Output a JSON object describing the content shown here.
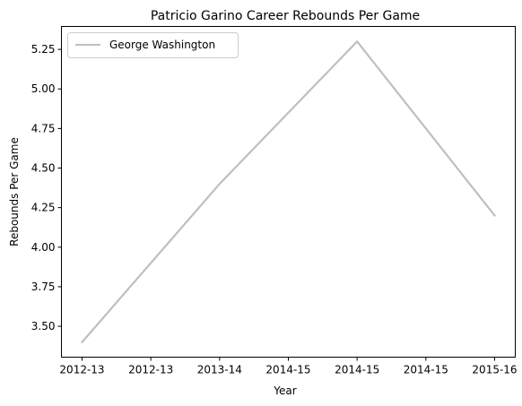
{
  "chart_data": {
    "type": "line",
    "title": "Patricio Garino Career Rebounds Per Game",
    "xlabel": "Year",
    "ylabel": "Rebounds Per Game",
    "x_tick_labels": [
      "2012-13",
      "2012-13",
      "2013-14",
      "2014-15",
      "2014-15",
      "2014-15",
      "2015-16"
    ],
    "x_tick_positions": [
      0,
      0.5,
      1,
      1.5,
      2,
      2.5,
      3
    ],
    "y_ticks": [
      3.5,
      3.75,
      4.0,
      4.25,
      4.5,
      4.75,
      5.0,
      5.25
    ],
    "y_tick_labels": [
      "3.50",
      "3.75",
      "4.00",
      "4.25",
      "4.50",
      "4.75",
      "5.00",
      "5.25"
    ],
    "ylim": [
      3.305,
      5.395
    ],
    "xlim": [
      -0.15,
      3.15
    ],
    "grid": false,
    "legend_position": "upper left",
    "series": [
      {
        "name": "George Washington",
        "color": "#bfbfbf",
        "x": [
          0,
          1,
          2,
          3
        ],
        "values": [
          3.4,
          4.4,
          5.3,
          4.2
        ]
      }
    ]
  }
}
